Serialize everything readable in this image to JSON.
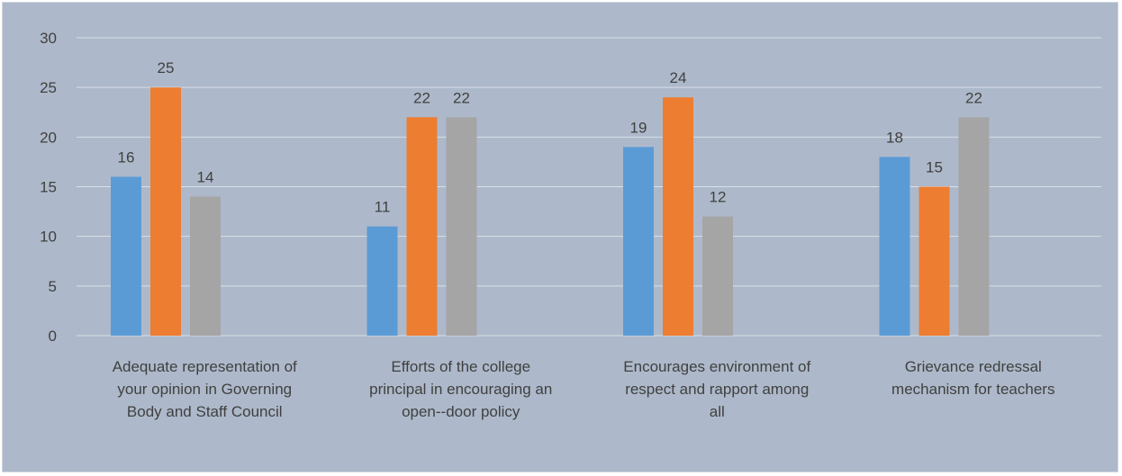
{
  "chart_data": {
    "type": "bar",
    "categories": [
      "Adequate representation of your opinion in Governing Body and Staff Council",
      "Efforts of the college principal in encouraging an open--door policy",
      "Encourages environment of respect and rapport among all",
      "Grievance redressal mechanism for teachers"
    ],
    "category_lines": [
      [
        "Adequate representation of",
        "your opinion in Governing",
        "Body and Staff Council"
      ],
      [
        "Efforts of the college",
        "principal in encouraging an",
        "open--door policy"
      ],
      [
        "Encourages environment of",
        "respect and rapport among",
        "all"
      ],
      [
        "Grievance redressal",
        "mechanism for teachers"
      ]
    ],
    "series": [
      {
        "values": [
          16,
          11,
          19,
          18
        ],
        "color": "#5b9bd5"
      },
      {
        "values": [
          25,
          22,
          24,
          15
        ],
        "color": "#ed7d31"
      },
      {
        "values": [
          14,
          22,
          12,
          22
        ],
        "color": "#a5a5a5"
      }
    ],
    "ylim": [
      0,
      30
    ],
    "yticks": [
      0,
      5,
      10,
      15,
      20,
      25,
      30
    ],
    "grid": true,
    "data_labels": true,
    "legend": "none",
    "background": "#adb9ca",
    "gridline_color": "#d9dfe7",
    "text_color": "#404040"
  }
}
